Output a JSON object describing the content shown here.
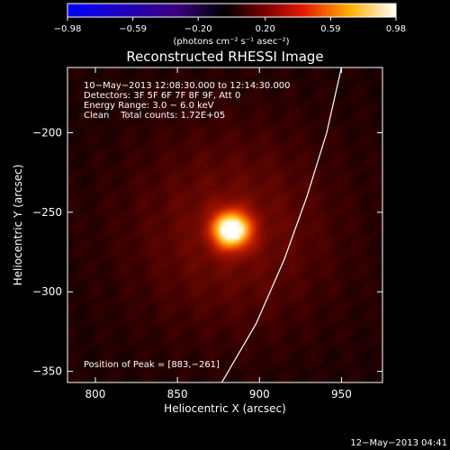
{
  "chart_data": {
    "type": "heatmap",
    "title": "Reconstructed RHESSI Image",
    "xlabel": "Heliocentric X (arcsec)",
    "ylabel": "Heliocentric Y (arcsec)",
    "xlim": [
      783,
      975
    ],
    "ylim": [
      -357,
      -159
    ],
    "x_ticks": [
      800,
      850,
      900,
      950
    ],
    "x_tick_labels": [
      "800",
      "850",
      "900",
      "950"
    ],
    "y_ticks": [
      -200,
      -250,
      -300,
      -350
    ],
    "y_tick_labels": [
      "−200",
      "−250",
      "−300",
      "−350"
    ],
    "colorbar": {
      "min": -0.98,
      "max": 0.98,
      "ticks": [
        -0.98,
        -0.59,
        -0.2,
        0.2,
        0.59,
        0.98
      ],
      "tick_labels": [
        "−0.98",
        "−0.59",
        "−0.20",
        "0.20",
        "0.59",
        "0.98"
      ],
      "unit_label": "(photons cm⁻² s⁻¹ asec⁻²)"
    },
    "info_lines": [
      "10−May−2013 12:08:30.000 to 12:14:30.000",
      "Detectors: 3F 5F 6F 7F 8F 9F, Att 0",
      "Energy Range: 3.0 − 6.0 keV",
      "Clean    Total counts: 1.72E+05"
    ],
    "peak_label": "Position of Peak = [883,−261]",
    "source": {
      "x": 883,
      "y": -261,
      "peak": 0.98,
      "sigma_arcsec": 8,
      "background": 0.07
    },
    "limb_curve": [
      [
        877,
        -357
      ],
      [
        898,
        -320
      ],
      [
        915,
        -280
      ],
      [
        929,
        -240
      ],
      [
        941,
        -200
      ],
      [
        950,
        -159
      ]
    ]
  },
  "timestamp": "12−May−2013 04:41"
}
